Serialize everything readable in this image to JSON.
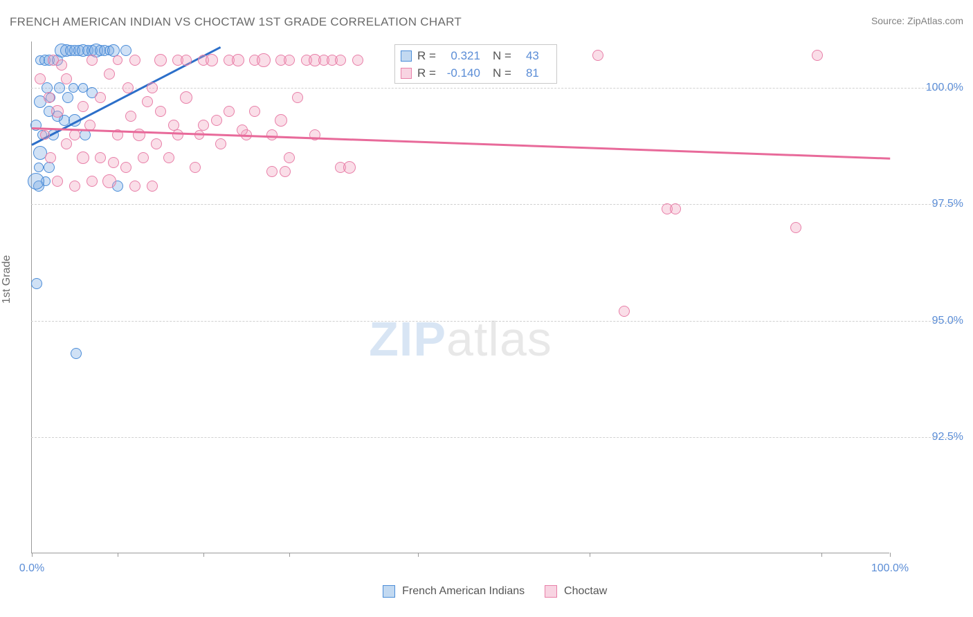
{
  "title": "FRENCH AMERICAN INDIAN VS CHOCTAW 1ST GRADE CORRELATION CHART",
  "source_label": "Source: ",
  "source_value": "ZipAtlas.com",
  "ylabel": "1st Grade",
  "watermark_zip": "ZIP",
  "watermark_atlas": "atlas",
  "chart": {
    "type": "scatter",
    "xlim": [
      0,
      100
    ],
    "ylim": [
      90,
      101
    ],
    "background_color": "#ffffff",
    "grid_color": "#d0d0d0",
    "point_default_radius": 8,
    "axis_color": "#999999",
    "tick_label_color": "#5b8dd6",
    "tick_fontsize": 16,
    "title_fontsize": 17,
    "title_color": "#6b6b6b",
    "yticks": [
      {
        "v": 92.5,
        "label": "92.5%"
      },
      {
        "v": 95.0,
        "label": "95.0%"
      },
      {
        "v": 97.5,
        "label": "97.5%"
      },
      {
        "v": 100.0,
        "label": "100.0%"
      }
    ],
    "xticks_major": [
      {
        "v": 0,
        "label": "0.0%"
      },
      {
        "v": 100,
        "label": "100.0%"
      }
    ],
    "xticks_minor": [
      10,
      20,
      30,
      45,
      65,
      92
    ],
    "series": [
      {
        "name": "French American Indians",
        "legend_label": "French American Indians",
        "color_fill": "rgba(120,170,225,0.35)",
        "color_stroke": "#4a8cd8",
        "r_value": "0.321",
        "n_value": "43",
        "trend": {
          "x1": 0,
          "y1": 98.8,
          "x2": 22,
          "y2": 100.9,
          "color": "#2c6fc9",
          "width": 3
        },
        "points": [
          {
            "x": 0.5,
            "y": 99.2,
            "r": 8
          },
          {
            "x": 0.8,
            "y": 98.3,
            "r": 7
          },
          {
            "x": 0.8,
            "y": 97.9,
            "r": 8
          },
          {
            "x": 1.0,
            "y": 100.6,
            "r": 7
          },
          {
            "x": 1.0,
            "y": 99.7,
            "r": 9
          },
          {
            "x": 1.2,
            "y": 99.0,
            "r": 7
          },
          {
            "x": 1.5,
            "y": 100.6,
            "r": 8
          },
          {
            "x": 1.0,
            "y": 98.6,
            "r": 10
          },
          {
            "x": 1.8,
            "y": 100.0,
            "r": 8
          },
          {
            "x": 2.0,
            "y": 99.5,
            "r": 8
          },
          {
            "x": 2.0,
            "y": 100.6,
            "r": 8
          },
          {
            "x": 2.5,
            "y": 99.0,
            "r": 8
          },
          {
            "x": 2.0,
            "y": 98.3,
            "r": 8
          },
          {
            "x": 2.2,
            "y": 99.8,
            "r": 7
          },
          {
            "x": 3.0,
            "y": 100.6,
            "r": 8
          },
          {
            "x": 3.5,
            "y": 100.8,
            "r": 10
          },
          {
            "x": 3.2,
            "y": 100.0,
            "r": 8
          },
          {
            "x": 1.6,
            "y": 98.0,
            "r": 7
          },
          {
            "x": 4.0,
            "y": 100.8,
            "r": 9
          },
          {
            "x": 4.5,
            "y": 100.8,
            "r": 8
          },
          {
            "x": 5.0,
            "y": 100.8,
            "r": 8
          },
          {
            "x": 5.5,
            "y": 100.8,
            "r": 8
          },
          {
            "x": 6.0,
            "y": 100.8,
            "r": 9
          },
          {
            "x": 6.0,
            "y": 100.0,
            "r": 7
          },
          {
            "x": 6.5,
            "y": 100.8,
            "r": 8
          },
          {
            "x": 7.0,
            "y": 100.8,
            "r": 8
          },
          {
            "x": 7.0,
            "y": 99.9,
            "r": 8
          },
          {
            "x": 7.5,
            "y": 100.8,
            "r": 10
          },
          {
            "x": 8.0,
            "y": 100.8,
            "r": 8
          },
          {
            "x": 8.5,
            "y": 100.8,
            "r": 8
          },
          {
            "x": 9.0,
            "y": 100.8,
            "r": 7
          },
          {
            "x": 9.5,
            "y": 100.8,
            "r": 9
          },
          {
            "x": 11.0,
            "y": 100.8,
            "r": 8
          },
          {
            "x": 3.8,
            "y": 99.3,
            "r": 8
          },
          {
            "x": 4.2,
            "y": 99.8,
            "r": 8
          },
          {
            "x": 5.0,
            "y": 99.3,
            "r": 9
          },
          {
            "x": 6.2,
            "y": 99.0,
            "r": 8
          },
          {
            "x": 10.0,
            "y": 97.9,
            "r": 8
          },
          {
            "x": 0.5,
            "y": 98.0,
            "r": 12
          },
          {
            "x": 0.6,
            "y": 95.8,
            "r": 8
          },
          {
            "x": 5.2,
            "y": 94.3,
            "r": 8
          },
          {
            "x": 4.8,
            "y": 100.0,
            "r": 7
          },
          {
            "x": 3.0,
            "y": 99.4,
            "r": 8
          }
        ]
      },
      {
        "name": "Choctaw",
        "legend_label": "Choctaw",
        "color_fill": "rgba(240,160,190,0.35)",
        "color_stroke": "#e87fa8",
        "r_value": "-0.140",
        "n_value": "81",
        "trend": {
          "x1": 0,
          "y1": 99.15,
          "x2": 100,
          "y2": 98.5,
          "color": "#e86a9a",
          "width": 3
        },
        "points": [
          {
            "x": 1.0,
            "y": 100.2,
            "r": 8
          },
          {
            "x": 2.0,
            "y": 99.8,
            "r": 8
          },
          {
            "x": 2.5,
            "y": 100.6,
            "r": 8
          },
          {
            "x": 3.0,
            "y": 99.5,
            "r": 9
          },
          {
            "x": 4.0,
            "y": 100.2,
            "r": 8
          },
          {
            "x": 4.0,
            "y": 98.8,
            "r": 8
          },
          {
            "x": 3.0,
            "y": 98.0,
            "r": 8
          },
          {
            "x": 5.0,
            "y": 99.0,
            "r": 8
          },
          {
            "x": 5.0,
            "y": 97.9,
            "r": 8
          },
          {
            "x": 6.0,
            "y": 99.6,
            "r": 8
          },
          {
            "x": 6.0,
            "y": 98.5,
            "r": 9
          },
          {
            "x": 7.0,
            "y": 100.6,
            "r": 8
          },
          {
            "x": 7.0,
            "y": 98.0,
            "r": 8
          },
          {
            "x": 8.0,
            "y": 99.8,
            "r": 8
          },
          {
            "x": 8.0,
            "y": 98.5,
            "r": 8
          },
          {
            "x": 9.0,
            "y": 100.3,
            "r": 8
          },
          {
            "x": 9.0,
            "y": 98.0,
            "r": 10
          },
          {
            "x": 10.0,
            "y": 99.0,
            "r": 8
          },
          {
            "x": 10.0,
            "y": 100.6,
            "r": 7
          },
          {
            "x": 9.5,
            "y": 98.4,
            "r": 8
          },
          {
            "x": 11.0,
            "y": 98.3,
            "r": 8
          },
          {
            "x": 12.0,
            "y": 97.9,
            "r": 8
          },
          {
            "x": 12.0,
            "y": 100.6,
            "r": 8
          },
          {
            "x": 12.5,
            "y": 99.0,
            "r": 9
          },
          {
            "x": 13.0,
            "y": 98.5,
            "r": 8
          },
          {
            "x": 14.0,
            "y": 100.0,
            "r": 8
          },
          {
            "x": 14.0,
            "y": 97.9,
            "r": 8
          },
          {
            "x": 15.0,
            "y": 99.5,
            "r": 8
          },
          {
            "x": 15.0,
            "y": 100.6,
            "r": 9
          },
          {
            "x": 16.0,
            "y": 98.5,
            "r": 8
          },
          {
            "x": 17.0,
            "y": 100.6,
            "r": 8
          },
          {
            "x": 17.0,
            "y": 99.0,
            "r": 8
          },
          {
            "x": 18.0,
            "y": 99.8,
            "r": 9
          },
          {
            "x": 18.0,
            "y": 100.6,
            "r": 8
          },
          {
            "x": 19.0,
            "y": 98.3,
            "r": 8
          },
          {
            "x": 20.0,
            "y": 100.6,
            "r": 8
          },
          {
            "x": 20.0,
            "y": 99.2,
            "r": 8
          },
          {
            "x": 21.0,
            "y": 100.6,
            "r": 9
          },
          {
            "x": 22.0,
            "y": 98.8,
            "r": 8
          },
          {
            "x": 23.0,
            "y": 100.6,
            "r": 8
          },
          {
            "x": 23.0,
            "y": 99.5,
            "r": 8
          },
          {
            "x": 24.0,
            "y": 100.6,
            "r": 9
          },
          {
            "x": 25.0,
            "y": 99.0,
            "r": 8
          },
          {
            "x": 26.0,
            "y": 100.6,
            "r": 8
          },
          {
            "x": 19.5,
            "y": 99.0,
            "r": 7
          },
          {
            "x": 26.0,
            "y": 99.5,
            "r": 8
          },
          {
            "x": 27.0,
            "y": 100.6,
            "r": 10
          },
          {
            "x": 28.0,
            "y": 98.2,
            "r": 8
          },
          {
            "x": 28.0,
            "y": 99.0,
            "r": 8
          },
          {
            "x": 29.0,
            "y": 100.6,
            "r": 8
          },
          {
            "x": 29.0,
            "y": 99.3,
            "r": 9
          },
          {
            "x": 21.5,
            "y": 99.3,
            "r": 8
          },
          {
            "x": 24.5,
            "y": 99.1,
            "r": 8
          },
          {
            "x": 30.0,
            "y": 100.6,
            "r": 8
          },
          {
            "x": 30.0,
            "y": 98.5,
            "r": 8
          },
          {
            "x": 31.0,
            "y": 99.8,
            "r": 8
          },
          {
            "x": 14.5,
            "y": 98.8,
            "r": 8
          },
          {
            "x": 16.5,
            "y": 99.2,
            "r": 8
          },
          {
            "x": 32.0,
            "y": 100.6,
            "r": 8
          },
          {
            "x": 33.0,
            "y": 100.6,
            "r": 9
          },
          {
            "x": 33.0,
            "y": 99.0,
            "r": 8
          },
          {
            "x": 34.0,
            "y": 100.6,
            "r": 8
          },
          {
            "x": 35.0,
            "y": 100.6,
            "r": 8
          },
          {
            "x": 36.0,
            "y": 98.3,
            "r": 8
          },
          {
            "x": 36.0,
            "y": 100.6,
            "r": 8
          },
          {
            "x": 37.0,
            "y": 98.3,
            "r": 9
          },
          {
            "x": 38.0,
            "y": 100.6,
            "r": 8
          },
          {
            "x": 29.5,
            "y": 98.2,
            "r": 8
          },
          {
            "x": 11.5,
            "y": 99.4,
            "r": 8
          },
          {
            "x": 66.0,
            "y": 100.7,
            "r": 8
          },
          {
            "x": 69.0,
            "y": 95.2,
            "r": 8
          },
          {
            "x": 74.0,
            "y": 97.4,
            "r": 8
          },
          {
            "x": 75.0,
            "y": 97.4,
            "r": 8
          },
          {
            "x": 89.0,
            "y": 97.0,
            "r": 8
          },
          {
            "x": 91.5,
            "y": 100.7,
            "r": 8
          },
          {
            "x": 1.5,
            "y": 99.0,
            "r": 7
          },
          {
            "x": 2.2,
            "y": 98.5,
            "r": 8
          },
          {
            "x": 3.5,
            "y": 100.5,
            "r": 8
          },
          {
            "x": 6.8,
            "y": 99.2,
            "r": 8
          },
          {
            "x": 13.5,
            "y": 99.7,
            "r": 8
          },
          {
            "x": 11.2,
            "y": 100.0,
            "r": 8
          }
        ]
      }
    ]
  },
  "legend_box": {
    "r_label": "R =",
    "n_label": "N ="
  },
  "bottom_legend": {
    "items": [
      {
        "swatch": "blue",
        "label": "French American Indians"
      },
      {
        "swatch": "pink",
        "label": "Choctaw"
      }
    ]
  }
}
